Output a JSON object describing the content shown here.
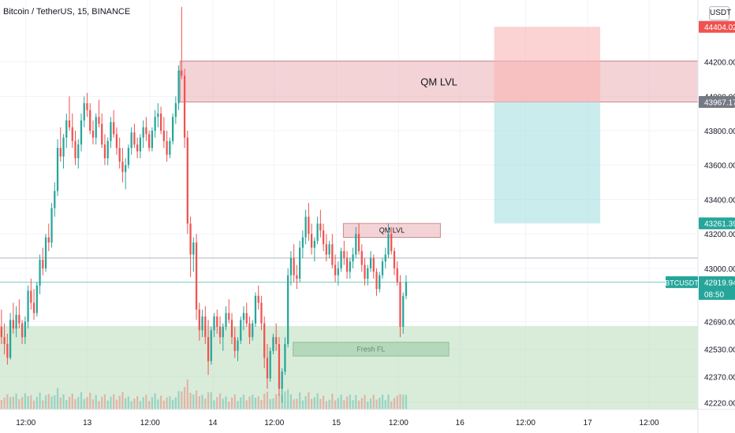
{
  "header": {
    "symbol_title": "Bitcoin / TetherUS, 15, BINANCE",
    "currency_label": "USDT"
  },
  "colors": {
    "bull": "#26a69a",
    "bear": "#ef5350",
    "demand_zone": "#b9dcb9",
    "qm_zone": "#e9a8ad",
    "stop_zone": "#f8b6b4",
    "target_zone": "#a9dfdf",
    "fresh_fl_zone": "#8cc29c",
    "axis_text": "#131722",
    "grid": "#f0f3fa"
  },
  "chart_data": {
    "type": "candlestick",
    "ylim": [
      42180,
      44560
    ],
    "y_ticks": [
      44200,
      44000,
      43800,
      43600,
      43400,
      43200,
      43000,
      42690,
      42530,
      42370,
      42220
    ],
    "x_ticks": [
      "12:00",
      "13",
      "12:00",
      "14",
      "12:00",
      "15",
      "12:00",
      "16",
      "12:00",
      "17",
      "12:00"
    ],
    "price_labels": [
      {
        "value": "44404.02",
        "price": 44404.02,
        "bg": "#ef5350",
        "color": "#ffffff"
      },
      {
        "value": "43967.17",
        "price": 43967.17,
        "bg": "#757a84",
        "color": "#ffffff"
      },
      {
        "value": "43261.39",
        "price": 43261.39,
        "bg": "#26a69a",
        "color": "#ffffff"
      },
      {
        "value": "42919.94",
        "price": 42919.94,
        "bg": "#26a69a",
        "color": "#ffffff"
      }
    ],
    "last_price_countdown": "08:50",
    "symbol_tag": "BTCUSDT",
    "horizontal_lines": [
      43060,
      42919.94
    ],
    "zones": [
      {
        "label": "QM LVL",
        "top": 44205,
        "bottom": 43967,
        "start": 0.258,
        "end": 1.0,
        "color": "qm_zone"
      },
      {
        "label": "QM LVL",
        "top": 43261,
        "bottom": 43180,
        "start": 0.492,
        "end": 0.631,
        "color": "qm_zone"
      },
      {
        "label": "Fresh FL",
        "top": 42570,
        "bottom": 42490,
        "start": 0.42,
        "end": 0.643,
        "color": "fresh_fl_zone"
      },
      {
        "label": "",
        "top": 42665,
        "bottom": 42180,
        "start": 0.0,
        "end": 1.0,
        "color": "demand_zone"
      }
    ],
    "position": {
      "entry": 43967.17,
      "stop": 44404.02,
      "target": 43261.39,
      "start": 0.708,
      "end": 0.86
    },
    "candles_ohlc": [
      [
        42660,
        42760,
        42560,
        42600
      ],
      [
        42600,
        42680,
        42500,
        42560
      ],
      [
        42560,
        42620,
        42440,
        42480
      ],
      [
        42480,
        42740,
        42470,
        42700
      ],
      [
        42700,
        42800,
        42620,
        42650
      ],
      [
        42650,
        42780,
        42600,
        42730
      ],
      [
        42730,
        42820,
        42650,
        42680
      ],
      [
        42680,
        42700,
        42560,
        42600
      ],
      [
        42600,
        42720,
        42560,
        42690
      ],
      [
        42690,
        42900,
        42650,
        42870
      ],
      [
        42870,
        42940,
        42760,
        42800
      ],
      [
        42800,
        42880,
        42700,
        42740
      ],
      [
        42740,
        42920,
        42720,
        42900
      ],
      [
        42900,
        43080,
        42850,
        43050
      ],
      [
        43050,
        43120,
        42960,
        43000
      ],
      [
        43000,
        43200,
        42980,
        43180
      ],
      [
        43180,
        43260,
        43100,
        43150
      ],
      [
        43150,
        43380,
        43120,
        43350
      ],
      [
        43350,
        43500,
        43300,
        43450
      ],
      [
        43450,
        43750,
        43420,
        43700
      ],
      [
        43700,
        43820,
        43620,
        43650
      ],
      [
        43650,
        43780,
        43580,
        43760
      ],
      [
        43760,
        43900,
        43700,
        43860
      ],
      [
        43860,
        44000,
        43800,
        43820
      ],
      [
        43820,
        43900,
        43700,
        43740
      ],
      [
        43740,
        43800,
        43600,
        43640
      ],
      [
        43640,
        43750,
        43580,
        43720
      ],
      [
        43720,
        43900,
        43680,
        43860
      ],
      [
        43860,
        44000,
        43820,
        43960
      ],
      [
        43960,
        44020,
        43880,
        43920
      ],
      [
        43920,
        43960,
        43780,
        43800
      ],
      [
        43800,
        43860,
        43720,
        43760
      ],
      [
        43760,
        43900,
        43720,
        43880
      ],
      [
        43880,
        43980,
        43820,
        43840
      ],
      [
        43840,
        43900,
        43700,
        43720
      ],
      [
        43720,
        43780,
        43600,
        43640
      ],
      [
        43640,
        43760,
        43600,
        43740
      ],
      [
        43740,
        43880,
        43700,
        43850
      ],
      [
        43850,
        43920,
        43760,
        43780
      ],
      [
        43780,
        43820,
        43660,
        43700
      ],
      [
        43700,
        43760,
        43580,
        43620
      ],
      [
        43620,
        43700,
        43500,
        43560
      ],
      [
        43560,
        43640,
        43460,
        43600
      ],
      [
        43600,
        43720,
        43580,
        43700
      ],
      [
        43700,
        43820,
        43660,
        43790
      ],
      [
        43790,
        43840,
        43700,
        43720
      ],
      [
        43720,
        43760,
        43640,
        43680
      ],
      [
        43680,
        43780,
        43640,
        43760
      ],
      [
        43760,
        43860,
        43700,
        43820
      ],
      [
        43820,
        43880,
        43740,
        43780
      ],
      [
        43780,
        43800,
        43680,
        43700
      ],
      [
        43700,
        43820,
        43680,
        43800
      ],
      [
        43800,
        43920,
        43760,
        43880
      ],
      [
        43880,
        43960,
        43820,
        43900
      ],
      [
        43900,
        43940,
        43780,
        43800
      ],
      [
        43800,
        43880,
        43700,
        43740
      ],
      [
        43740,
        43800,
        43620,
        43660
      ],
      [
        43660,
        43760,
        43640,
        43740
      ],
      [
        43740,
        43900,
        43720,
        43880
      ],
      [
        43880,
        44000,
        43840,
        43960
      ],
      [
        43960,
        44180,
        43920,
        44150
      ],
      [
        44150,
        44520,
        44100,
        44120
      ],
      [
        44120,
        44160,
        43700,
        43760
      ],
      [
        43760,
        43800,
        43200,
        43260
      ],
      [
        43260,
        43300,
        42950,
        43080
      ],
      [
        43080,
        43180,
        42980,
        43150
      ],
      [
        43150,
        43200,
        42700,
        42760
      ],
      [
        42760,
        42800,
        42580,
        42640
      ],
      [
        42640,
        42760,
        42600,
        42720
      ],
      [
        42720,
        42780,
        42560,
        42600
      ],
      [
        42600,
        42700,
        42380,
        42460
      ],
      [
        42460,
        42660,
        42440,
        42640
      ],
      [
        42640,
        42740,
        42600,
        42720
      ],
      [
        42720,
        42760,
        42620,
        42660
      ],
      [
        42660,
        42720,
        42560,
        42600
      ],
      [
        42600,
        42680,
        42520,
        42660
      ],
      [
        42660,
        42780,
        42640,
        42740
      ],
      [
        42740,
        42820,
        42680,
        42700
      ],
      [
        42700,
        42740,
        42560,
        42600
      ],
      [
        42600,
        42660,
        42480,
        42520
      ],
      [
        42520,
        42600,
        42460,
        42580
      ],
      [
        42580,
        42720,
        42560,
        42700
      ],
      [
        42700,
        42780,
        42640,
        42740
      ],
      [
        42740,
        42800,
        42660,
        42680
      ],
      [
        42680,
        42720,
        42560,
        42600
      ],
      [
        42600,
        42700,
        42580,
        42680
      ],
      [
        42680,
        42860,
        42660,
        42840
      ],
      [
        42840,
        42900,
        42760,
        42800
      ],
      [
        42800,
        42840,
        42640,
        42680
      ],
      [
        42680,
        42720,
        42420,
        42480
      ],
      [
        42480,
        42560,
        42300,
        42360
      ],
      [
        42360,
        42540,
        42340,
        42520
      ],
      [
        42520,
        42620,
        42500,
        42600
      ],
      [
        42600,
        42680,
        42520,
        42560
      ],
      [
        42560,
        42600,
        42260,
        42300
      ],
      [
        42300,
        42420,
        42220,
        42400
      ],
      [
        42400,
        42600,
        42380,
        42560
      ],
      [
        42560,
        43000,
        42540,
        42960
      ],
      [
        42960,
        43100,
        42900,
        43060
      ],
      [
        43060,
        43140,
        42920,
        42960
      ],
      [
        42960,
        43020,
        42880,
        42940
      ],
      [
        42940,
        43160,
        42920,
        43120
      ],
      [
        43120,
        43220,
        43060,
        43180
      ],
      [
        43180,
        43340,
        43140,
        43300
      ],
      [
        43300,
        43380,
        43160,
        43200
      ],
      [
        43200,
        43260,
        43080,
        43120
      ],
      [
        43120,
        43180,
        43040,
        43160
      ],
      [
        43160,
        43300,
        43140,
        43260
      ],
      [
        43260,
        43340,
        43180,
        43220
      ],
      [
        43220,
        43260,
        43100,
        43140
      ],
      [
        43140,
        43200,
        43040,
        43080
      ],
      [
        43080,
        43160,
        43060,
        43140
      ],
      [
        43140,
        43200,
        43000,
        43020
      ],
      [
        43020,
        43080,
        42920,
        42960
      ],
      [
        42960,
        43040,
        42900,
        43000
      ],
      [
        43000,
        43120,
        42980,
        43100
      ],
      [
        43100,
        43160,
        43020,
        43060
      ],
      [
        43060,
        43100,
        42940,
        42980
      ],
      [
        42980,
        43060,
        42940,
        43040
      ],
      [
        43040,
        43120,
        43000,
        43080
      ],
      [
        43080,
        43240,
        43060,
        43200
      ],
      [
        43200,
        43260,
        43080,
        43100
      ],
      [
        43100,
        43140,
        42980,
        43020
      ],
      [
        43020,
        43060,
        42900,
        42940
      ],
      [
        42940,
        43020,
        42900,
        43000
      ],
      [
        43000,
        43100,
        42980,
        43060
      ],
      [
        43060,
        43080,
        42940,
        42980
      ],
      [
        42980,
        43000,
        42840,
        42880
      ],
      [
        42880,
        42980,
        42860,
        42960
      ],
      [
        42960,
        43060,
        42940,
        43040
      ],
      [
        43040,
        43120,
        43000,
        43080
      ],
      [
        43080,
        43260,
        43060,
        43200
      ],
      [
        43200,
        43240,
        43080,
        43100
      ],
      [
        43100,
        43120,
        42960,
        43000
      ],
      [
        43000,
        43040,
        42900,
        42920
      ],
      [
        42920,
        42960,
        42600,
        42660
      ],
      [
        42660,
        42860,
        42620,
        42840
      ],
      [
        42840,
        42960,
        42820,
        42920
      ]
    ]
  }
}
